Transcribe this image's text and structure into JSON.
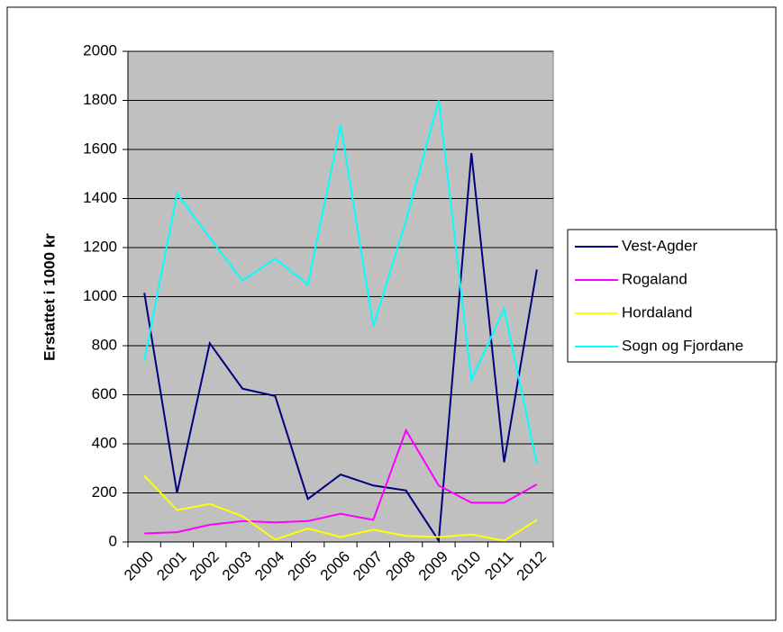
{
  "chart_data": {
    "type": "line",
    "y_label": "Erstattet i 1000 kr",
    "categories": [
      "2000",
      "2001",
      "2002",
      "2003",
      "2004",
      "2005",
      "2006",
      "2007",
      "2008",
      "2009",
      "2010",
      "2011",
      "2012"
    ],
    "series": [
      {
        "name": "Vest-Agder",
        "color": "#000080",
        "values": [
          1015,
          200,
          810,
          625,
          595,
          175,
          275,
          230,
          210,
          5,
          1585,
          325,
          1110
        ]
      },
      {
        "name": "Rogaland",
        "color": "#ff00ff",
        "values": [
          35,
          40,
          70,
          85,
          80,
          85,
          115,
          90,
          455,
          230,
          160,
          160,
          235
        ]
      },
      {
        "name": "Hordaland",
        "color": "#ffff00",
        "values": [
          270,
          130,
          155,
          105,
          10,
          55,
          20,
          50,
          25,
          20,
          30,
          5,
          90
        ]
      },
      {
        "name": "Sogn og Fjordane",
        "color": "#00ffff",
        "values": [
          740,
          1420,
          1240,
          1065,
          1155,
          1050,
          1700,
          880,
          1310,
          1800,
          660,
          950,
          320
        ]
      }
    ],
    "ylim": [
      0,
      2000
    ],
    "yticks": [
      0,
      200,
      400,
      600,
      800,
      1000,
      1200,
      1400,
      1600,
      1800,
      2000
    ],
    "grid": true
  }
}
